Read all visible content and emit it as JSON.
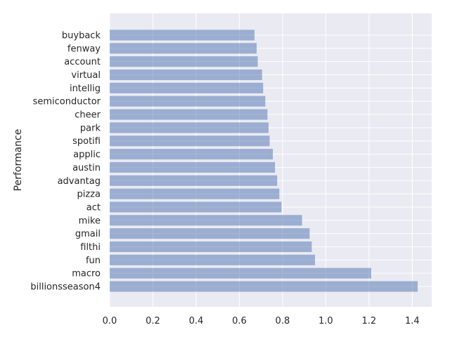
{
  "chart_data": {
    "type": "bar",
    "orientation": "horizontal",
    "title": "",
    "xlabel": "",
    "ylabel": "Performance",
    "categories": [
      "buyback",
      "fenway",
      "account",
      "virtual",
      "intellig",
      "semiconductor",
      "cheer",
      "park",
      "spotifi",
      "applic",
      "austin",
      "advantag",
      "pizza",
      "act",
      "mike",
      "gmail",
      "filthi",
      "fun",
      "macro",
      "billionsseason4"
    ],
    "values": [
      0.67,
      0.68,
      0.685,
      0.705,
      0.71,
      0.72,
      0.73,
      0.735,
      0.74,
      0.755,
      0.765,
      0.775,
      0.785,
      0.795,
      0.89,
      0.925,
      0.935,
      0.95,
      1.21,
      1.425
    ],
    "xlim": [
      0,
      1.49
    ],
    "xticks": [
      0.0,
      0.2,
      0.4,
      0.6,
      0.8,
      1.0,
      1.2,
      1.4
    ],
    "xtick_labels": [
      "0.0",
      "0.2",
      "0.4",
      "0.6",
      "0.8",
      "1.0",
      "1.2",
      "1.4"
    ],
    "grid": true,
    "colors": {
      "bar": "#4c72b0",
      "bar_opacity": 0.5,
      "plot_background": "#eaeaf2",
      "grid": "#ffffff",
      "text": "#262626"
    }
  }
}
